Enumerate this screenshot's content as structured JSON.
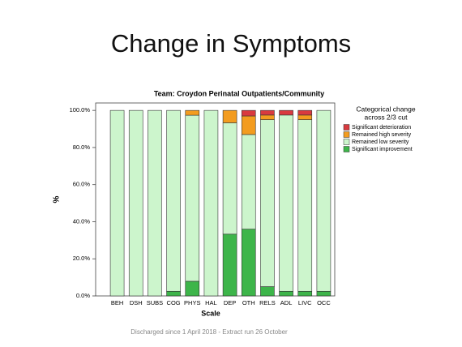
{
  "page_title": "Change in Symptoms",
  "footer": "Discharged since 1 April 2018 - Extract run 26 October",
  "chart_data": {
    "type": "stacked_bar",
    "title": "Team: Croydon Perinatal Outpatients/Community",
    "x_label": "Scale",
    "y_label": "%",
    "legend_title": [
      "Categorical change",
      "across 2/3 cut"
    ],
    "legend_position": "right",
    "categories": [
      "BEH",
      "DSH",
      "SUBS",
      "COG",
      "PHYS",
      "HAL",
      "DEP",
      "OTH",
      "RELS",
      "ADL",
      "LIVC",
      "OCC"
    ],
    "series": [
      {
        "name": "Significant deterioration",
        "color": "#d93a3f",
        "values": [
          0,
          0,
          0,
          0,
          0,
          0,
          0,
          3,
          2.5,
          2.5,
          2.5,
          0
        ]
      },
      {
        "name": "Remained high severity",
        "color": "#f39c1f",
        "values": [
          0,
          0,
          0,
          0,
          2.6,
          0,
          6.7,
          10,
          2.5,
          0,
          2.5,
          0
        ]
      },
      {
        "name": "Remained low severity",
        "color": "#ccf5cc",
        "values": [
          100,
          100,
          100,
          97.5,
          89.5,
          100,
          60,
          51,
          90,
          95,
          92.5,
          97.5
        ]
      },
      {
        "name": "Significant improvement",
        "color": "#3db54a",
        "values": [
          0,
          0,
          0,
          2.5,
          7.9,
          0,
          33.3,
          36,
          5,
          2.5,
          2.5,
          2.5
        ]
      }
    ],
    "ylim": [
      0,
      104
    ],
    "yticks": [
      {
        "value": 0,
        "label": "0.0%"
      },
      {
        "value": 20,
        "label": "20.0%"
      },
      {
        "value": 40,
        "label": "40.0%"
      },
      {
        "value": 60,
        "label": "60.0%"
      },
      {
        "value": 80,
        "label": "80.0%"
      },
      {
        "value": 100,
        "label": "100.0%"
      }
    ],
    "grid": false
  }
}
